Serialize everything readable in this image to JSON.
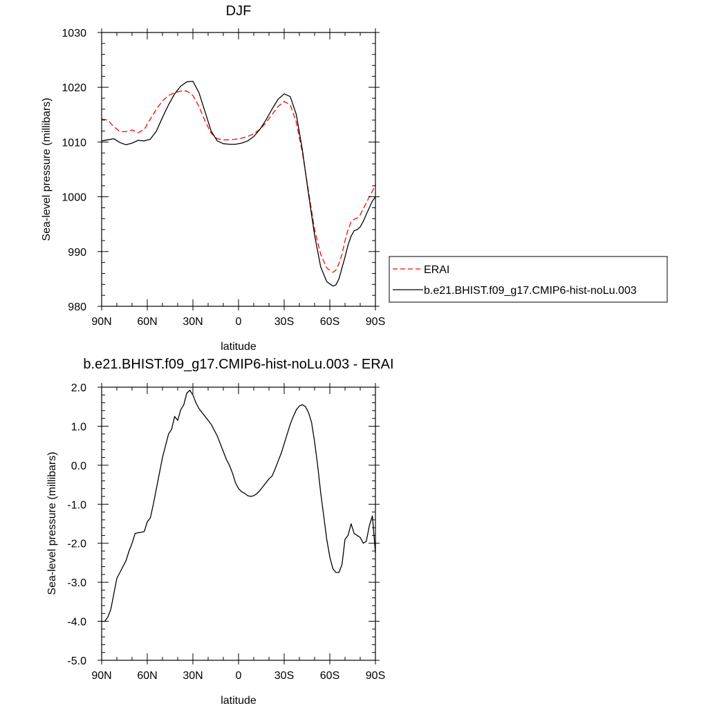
{
  "chart_data": [
    {
      "type": "line",
      "title": "DJF",
      "xlabel": "latitude",
      "ylabel": "Sea-level pressure (millibars)",
      "xlim": [
        90,
        -90
      ],
      "ylim": [
        980,
        1030
      ],
      "xticks": [
        90,
        60,
        30,
        0,
        -30,
        -60,
        -90
      ],
      "xticklabels": [
        "90N",
        "60N",
        "30N",
        "0",
        "30S",
        "60S",
        "90S"
      ],
      "yticks": [
        980,
        990,
        1000,
        1010,
        1020,
        1030
      ],
      "yticklabels": [
        "980",
        "990",
        "1000",
        "1010",
        "1020",
        "1030"
      ],
      "legend_position": "right",
      "series": [
        {
          "name": "ERAI",
          "color": "#ff0000",
          "dash": "dashed",
          "x": [
            90,
            86,
            82,
            78,
            74,
            70,
            66,
            62,
            58,
            54,
            50,
            46,
            42,
            38,
            34,
            30,
            26,
            22,
            18,
            14,
            10,
            6,
            2,
            -2,
            -6,
            -10,
            -14,
            -18,
            -22,
            -26,
            -30,
            -34,
            -38,
            -42,
            -46,
            -50,
            -54,
            -58,
            -62,
            -64,
            -66,
            -68,
            -70,
            -72,
            -74,
            -76,
            -78,
            -80,
            -82,
            -84,
            -86,
            -88,
            -90
          ],
          "values": [
            1014.2,
            1014.0,
            1012.8,
            1011.9,
            1011.9,
            1012.2,
            1011.7,
            1012.3,
            1014.2,
            1016.0,
            1017.5,
            1018.5,
            1019.0,
            1019.3,
            1019.3,
            1018.5,
            1016.5,
            1013.8,
            1011.6,
            1010.6,
            1010.4,
            1010.4,
            1010.5,
            1010.7,
            1011.0,
            1011.5,
            1012.3,
            1013.5,
            1015.0,
            1016.5,
            1017.4,
            1016.8,
            1013.6,
            1008.0,
            1001.0,
            994.0,
            989.5,
            987.0,
            986.2,
            986.6,
            987.8,
            989.5,
            992.0,
            994.0,
            995.4,
            995.9,
            996.1,
            996.7,
            997.8,
            998.9,
            1000.0,
            1001.0,
            1002.2
          ]
        },
        {
          "name": "b.e21.BHIST.f09_g17.CMIP6-hist-noLu.003",
          "color": "#000000",
          "dash": "solid",
          "x": [
            90,
            86,
            82,
            78,
            74,
            70,
            66,
            62,
            58,
            54,
            50,
            46,
            42,
            38,
            34,
            30,
            26,
            22,
            18,
            14,
            10,
            6,
            2,
            -2,
            -6,
            -10,
            -14,
            -18,
            -22,
            -26,
            -30,
            -34,
            -38,
            -42,
            -46,
            -50,
            -54,
            -58,
            -62,
            -64,
            -66,
            -68,
            -70,
            -72,
            -74,
            -76,
            -78,
            -80,
            -82,
            -84,
            -86,
            -88,
            -90
          ],
          "values": [
            1010.2,
            1010.4,
            1010.6,
            1009.9,
            1009.5,
            1009.8,
            1010.3,
            1010.2,
            1010.5,
            1012.0,
            1014.5,
            1016.8,
            1018.8,
            1020.2,
            1021.0,
            1021.1,
            1019.0,
            1015.5,
            1012.0,
            1010.2,
            1009.7,
            1009.6,
            1009.6,
            1009.8,
            1010.2,
            1011.0,
            1012.3,
            1014.0,
            1016.0,
            1017.8,
            1018.8,
            1018.3,
            1015.0,
            1008.5,
            1000.5,
            993.0,
            987.2,
            984.5,
            983.7,
            983.9,
            985.0,
            987.0,
            989.0,
            991.2,
            992.8,
            993.8,
            994.0,
            994.5,
            995.5,
            996.8,
            998.0,
            999.2,
            1000.0
          ]
        }
      ]
    },
    {
      "type": "line",
      "title": "b.e21.BHIST.f09_g17.CMIP6-hist-noLu.003 - ERAI",
      "xlabel": "latitude",
      "ylabel": "Sea-level pressure (millibars)",
      "xlim": [
        90,
        -90
      ],
      "ylim": [
        -5.0,
        2.0
      ],
      "xticks": [
        90,
        60,
        30,
        0,
        -30,
        -60,
        -90
      ],
      "xticklabels": [
        "90N",
        "60N",
        "30N",
        "0",
        "30S",
        "60S",
        "90S"
      ],
      "yticks": [
        -5.0,
        -4.0,
        -3.0,
        -2.0,
        -1.0,
        0.0,
        1.0,
        2.0
      ],
      "yticklabels": [
        "-5.0",
        "-4.0",
        "-3.0",
        "-2.0",
        "-1.0",
        "0.0",
        "1.0",
        "2.0"
      ],
      "series": [
        {
          "color": "#000000",
          "dash": "solid",
          "x": [
            90,
            88,
            86,
            84,
            82,
            80,
            78,
            76,
            74,
            72,
            70,
            68,
            66,
            64,
            62,
            60,
            58,
            56,
            54,
            52,
            50,
            48,
            46,
            44,
            42,
            40,
            38,
            36,
            34,
            32,
            30,
            28,
            26,
            24,
            22,
            20,
            18,
            16,
            14,
            12,
            10,
            8,
            6,
            4,
            2,
            0,
            -2,
            -4,
            -6,
            -8,
            -10,
            -12,
            -14,
            -16,
            -18,
            -20,
            -22,
            -24,
            -26,
            -28,
            -30,
            -32,
            -34,
            -36,
            -38,
            -40,
            -42,
            -44,
            -46,
            -48,
            -50,
            -52,
            -54,
            -56,
            -58,
            -60,
            -62,
            -64,
            -66,
            -68,
            -70,
            -72,
            -74,
            -76,
            -78,
            -80,
            -82,
            -84,
            -86,
            -88,
            -90
          ],
          "values": [
            -4.0,
            -4.0,
            -3.9,
            -3.7,
            -3.3,
            -2.9,
            -2.75,
            -2.6,
            -2.45,
            -2.2,
            -2.0,
            -1.75,
            -1.73,
            -1.72,
            -1.7,
            -1.45,
            -1.35,
            -1.0,
            -0.6,
            -0.2,
            0.2,
            0.5,
            0.8,
            0.92,
            1.25,
            1.15,
            1.42,
            1.55,
            1.85,
            1.92,
            1.8,
            1.6,
            1.45,
            1.35,
            1.25,
            1.15,
            1.05,
            0.9,
            0.75,
            0.55,
            0.35,
            0.15,
            0.0,
            -0.2,
            -0.45,
            -0.6,
            -0.68,
            -0.72,
            -0.78,
            -0.8,
            -0.78,
            -0.73,
            -0.65,
            -0.55,
            -0.45,
            -0.35,
            -0.28,
            -0.1,
            0.1,
            0.3,
            0.55,
            0.8,
            1.05,
            1.25,
            1.42,
            1.52,
            1.55,
            1.5,
            1.35,
            1.1,
            0.6,
            0.0,
            -0.7,
            -1.3,
            -1.9,
            -2.35,
            -2.65,
            -2.75,
            -2.75,
            -2.55,
            -1.9,
            -1.8,
            -1.5,
            -1.75,
            -1.8,
            -1.85,
            -2.0,
            -1.95,
            -1.55,
            -1.3,
            -2.25
          ]
        }
      ]
    }
  ]
}
